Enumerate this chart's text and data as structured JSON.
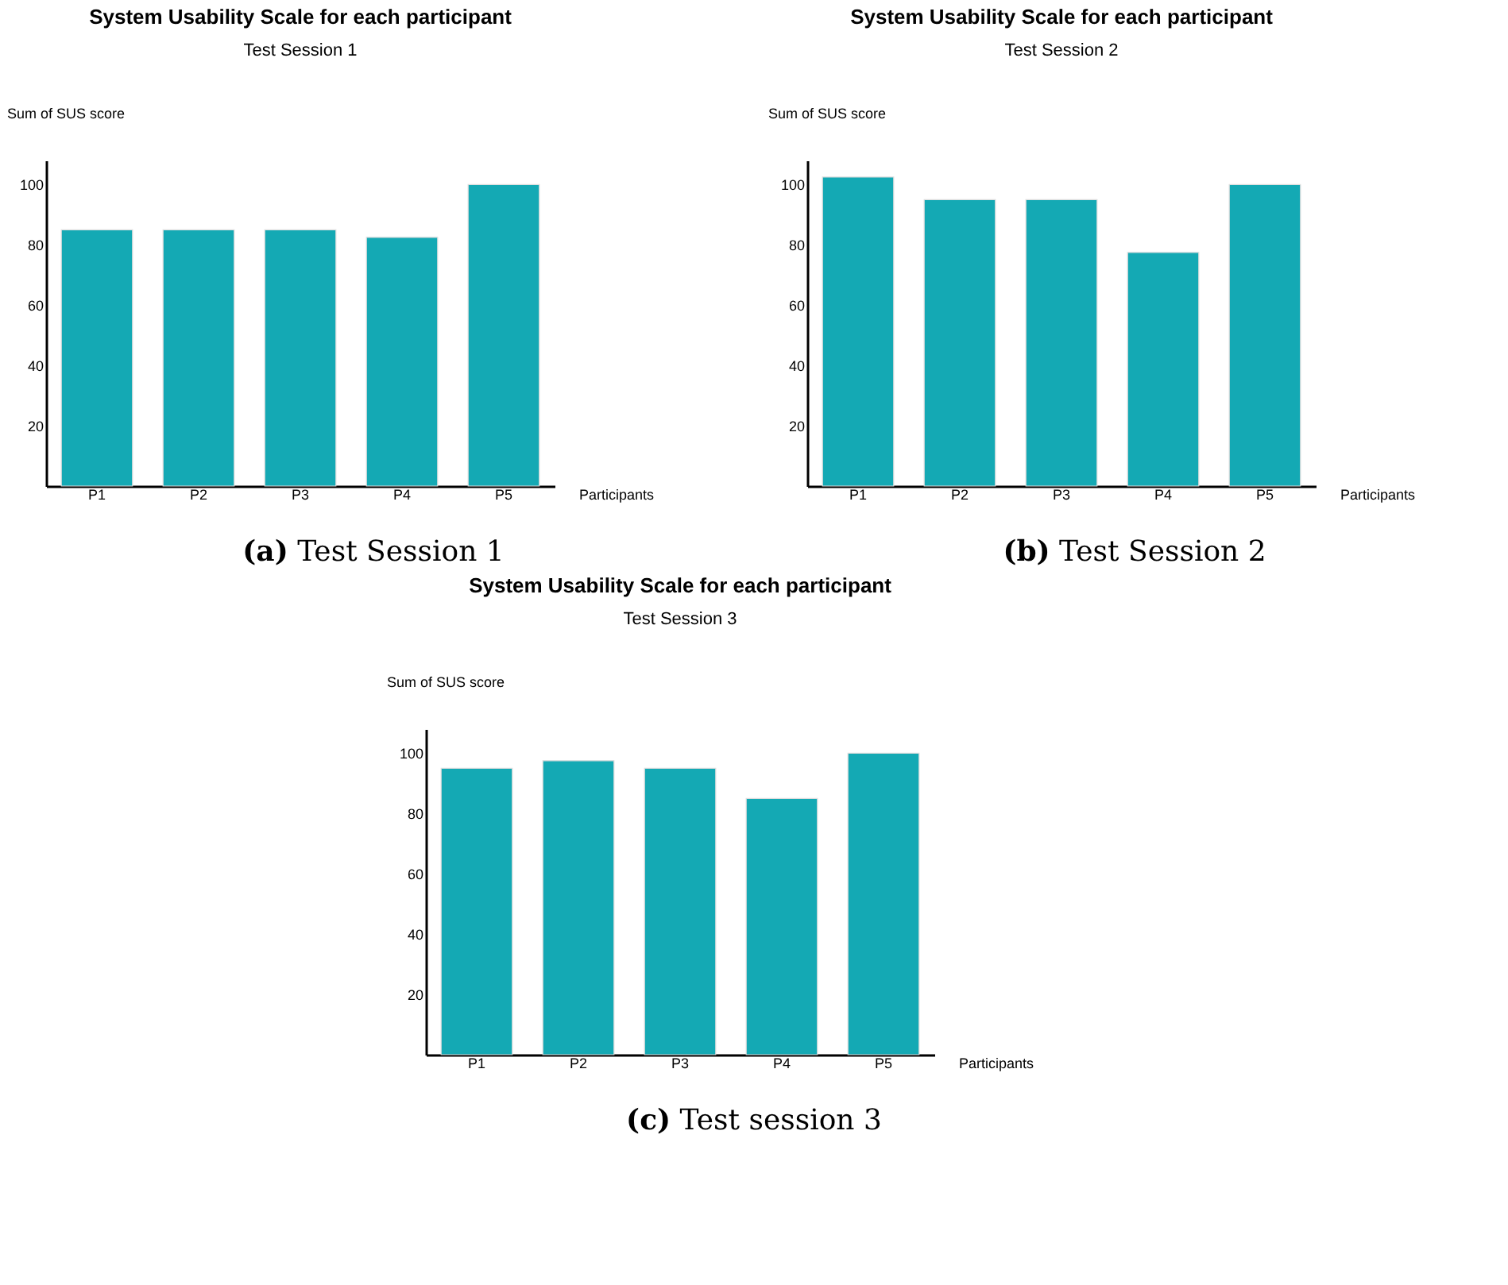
{
  "chart_data": [
    {
      "type": "bar",
      "title": "System Usability Scale for each participant",
      "subtitle": "Test Session 1",
      "xlabel": "Participants",
      "ylabel": "Sum of SUS score",
      "categories": [
        "P1",
        "P2",
        "P3",
        "P4",
        "P5"
      ],
      "values": [
        85,
        85,
        85,
        82.5,
        100
      ],
      "color": "#14a9b4",
      "ylim": [
        0,
        108
      ],
      "yticks": [
        20,
        40,
        60,
        80,
        100
      ],
      "annotations": [
        "(a) Test Session 1"
      ]
    },
    {
      "type": "bar",
      "title": "System Usability Scale for each participant",
      "subtitle": "Test Session 2",
      "xlabel": "Participants",
      "ylabel": "Sum of SUS score",
      "categories": [
        "P1",
        "P2",
        "P3",
        "P4",
        "P5"
      ],
      "values": [
        102.5,
        95,
        95,
        77.5,
        100
      ],
      "color": "#14a9b4",
      "ylim": [
        0,
        108
      ],
      "yticks": [
        20,
        40,
        60,
        80,
        100
      ],
      "annotations": [
        "(b) Test Session 2"
      ]
    },
    {
      "type": "bar",
      "title": "System Usability Scale for each participant",
      "subtitle": "Test Session 3",
      "xlabel": "Participants",
      "ylabel": "Sum of SUS score",
      "categories": [
        "P1",
        "P2",
        "P3",
        "P4",
        "P5"
      ],
      "values": [
        95,
        97.5,
        95,
        85,
        100
      ],
      "color": "#14a9b4",
      "ylim": [
        0,
        108
      ],
      "yticks": [
        20,
        40,
        60,
        80,
        100
      ],
      "annotations": [
        "(c) Test session 3"
      ]
    }
  ]
}
